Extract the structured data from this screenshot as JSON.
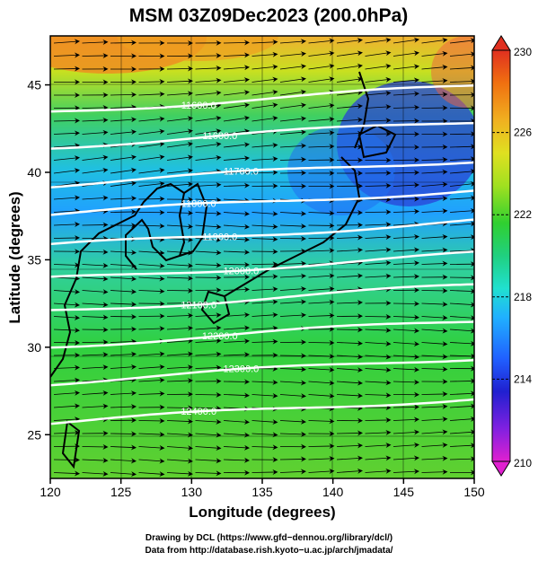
{
  "title": "MSM 03Z09Dec2023 (200.0hPa)",
  "x_axis": {
    "label": "Longitude (degrees)",
    "ticks": [
      "120",
      "125",
      "130",
      "135",
      "140",
      "145",
      "150"
    ],
    "range": [
      120,
      150
    ]
  },
  "y_axis": {
    "label": "Latitude (degrees)",
    "ticks": [
      "25",
      "30",
      "35",
      "40",
      "45"
    ],
    "range": [
      22.5,
      47.8
    ]
  },
  "colorbar": {
    "max_label": "230",
    "min_label": "210",
    "ticks": [
      "226",
      "222",
      "218",
      "214"
    ],
    "range": [
      210,
      230
    ],
    "colors": [
      "#e020d0",
      "#8020e0",
      "#2020d0",
      "#2060ff",
      "#20b0ff",
      "#20e0d0",
      "#20d080",
      "#30d030",
      "#a0e020",
      "#e0e020",
      "#f0b020",
      "#f07010",
      "#e03020"
    ]
  },
  "contours": [
    {
      "label": "11600.0",
      "lat": 44.2
    },
    {
      "label": "11600.0",
      "lat": 42.2
    },
    {
      "label": "11700.0",
      "lat": 40.0
    },
    {
      "label": "11800.0",
      "lat": 38.3
    },
    {
      "label": "11900.0",
      "lat": 36.5
    },
    {
      "label": "12000.0",
      "lat": 34.6
    },
    {
      "label": "12100.0",
      "lat": 32.8
    },
    {
      "label": "12200.0",
      "lat": 30.8
    },
    {
      "label": "12300.0",
      "lat": 28.7
    },
    {
      "label": "12400.0",
      "lat": 26.4
    }
  ],
  "credits": {
    "line1": "Drawing by DCL (https://www.gfd−dennou.org/library/dcl/)",
    "line2": "Data from http://database.rish.kyoto−u.ac.jp/arch/jmadata/"
  }
}
